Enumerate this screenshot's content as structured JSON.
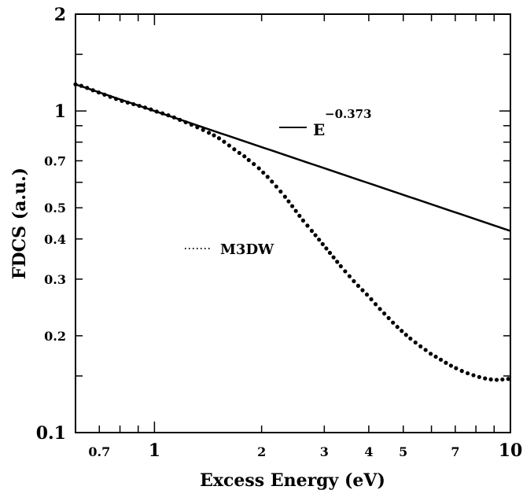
{
  "chart_data": {
    "type": "line",
    "title": "",
    "xlabel": "Excess Energy (eV)",
    "ylabel": "FDCS (a.u.)",
    "xscale": "log",
    "yscale": "log",
    "xlim": [
      0.6,
      10
    ],
    "ylim": [
      0.1,
      2
    ],
    "grid": false,
    "legend_placement": "inside, center",
    "x_tick_labels": [
      {
        "value": 0.7,
        "label": "0.7"
      },
      {
        "value": 1,
        "label": "1"
      },
      {
        "value": 2,
        "label": "2"
      },
      {
        "value": 3,
        "label": "3"
      },
      {
        "value": 4,
        "label": "4"
      },
      {
        "value": 5,
        "label": "5"
      },
      {
        "value": 7,
        "label": "7"
      },
      {
        "value": 10,
        "label": "10"
      }
    ],
    "x_minor_ticks": [
      0.6,
      0.7,
      0.8,
      0.9,
      1,
      2,
      3,
      4,
      5,
      6,
      7,
      8,
      9,
      10
    ],
    "y_tick_labels": [
      {
        "value": 0.1,
        "label": "0.1"
      },
      {
        "value": 0.2,
        "label": "0.2"
      },
      {
        "value": 0.3,
        "label": "0.3"
      },
      {
        "value": 0.4,
        "label": "0.4"
      },
      {
        "value": 0.5,
        "label": "0.5"
      },
      {
        "value": 0.7,
        "label": "0.7"
      },
      {
        "value": 1,
        "label": "1"
      },
      {
        "value": 2,
        "label": "2"
      }
    ],
    "y_minor_ticks": [
      0.1,
      0.15,
      0.2,
      0.3,
      0.4,
      0.5,
      0.6,
      0.7,
      0.8,
      0.9,
      1,
      1.5,
      2
    ],
    "series": [
      {
        "label_base": "E",
        "label_exponent": "−0.373",
        "style": "solid",
        "color": "#000000",
        "function": "power",
        "coefficient": 1.0,
        "exponent": -0.373,
        "x": [
          0.6,
          10
        ],
        "y": [
          1.21,
          0.424
        ]
      },
      {
        "name": "M3DW",
        "style": "dotted",
        "color": "#000000",
        "x": [
          0.6,
          0.7,
          0.8,
          0.9,
          1.0,
          1.2,
          1.5,
          1.8,
          2.0,
          2.3,
          2.6,
          3.0,
          3.5,
          4.0,
          4.5,
          5.0,
          5.5,
          6.0,
          7.0,
          8.0,
          9.0,
          10.0
        ],
        "y": [
          1.21,
          1.14,
          1.08,
          1.04,
          1.0,
          0.93,
          0.83,
          0.72,
          0.65,
          0.55,
          0.46,
          0.38,
          0.31,
          0.265,
          0.23,
          0.205,
          0.188,
          0.175,
          0.159,
          0.15,
          0.146,
          0.147
        ]
      }
    ]
  }
}
